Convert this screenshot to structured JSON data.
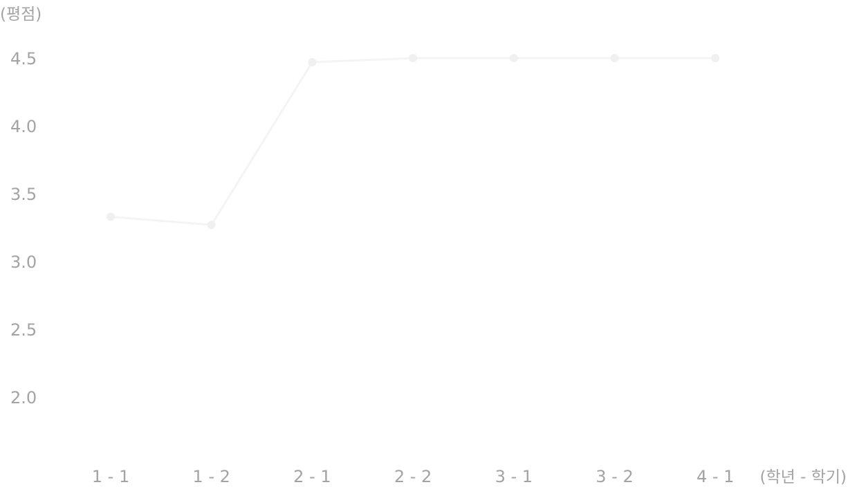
{
  "chart_data": {
    "type": "line",
    "ylabel": "(평점)",
    "xlabel": "(학년 - 학기)",
    "categories": [
      "1 - 1",
      "1 - 2",
      "2 - 1",
      "2 - 2",
      "3 - 1",
      "3 - 2",
      "4 - 1"
    ],
    "y_ticks": [
      "4.5",
      "4.0",
      "3.5",
      "3.0",
      "2.5",
      "2.0"
    ],
    "ylim": [
      1.65,
      4.7
    ],
    "grid": false,
    "legend": "none",
    "series": [
      {
        "values": [
          3.33,
          3.27,
          4.47,
          4.5,
          4.5,
          4.5,
          4.5
        ],
        "color": "#f4f4f4"
      }
    ]
  }
}
